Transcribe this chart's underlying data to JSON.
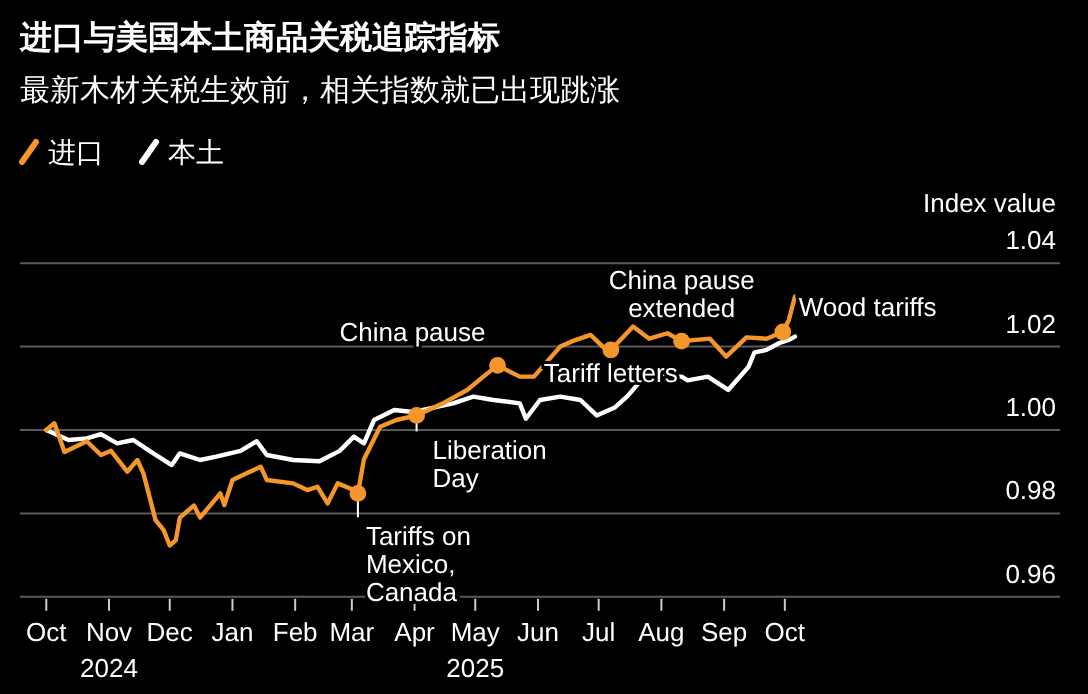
{
  "chart_data": {
    "type": "line",
    "title": "进口与美国本土商品关税追踪指标",
    "subtitle": "最新木材关税生效前，相关指数就已出现跳涨",
    "ylabel": "Index value",
    "legend": "top left",
    "marker": "none",
    "line_style": "solid",
    "grid": "y",
    "xlim": [
      "2024-09-18",
      "2026-02-14"
    ],
    "ylim": [
      0.96,
      1.04
    ],
    "yticks": [
      0.96,
      0.98,
      {
        "value": 1,
        "label": "1.00"
      },
      1.02,
      1.04
    ],
    "xticks": [
      {
        "value": "2024-10-01",
        "label": "Oct"
      },
      {
        "value": "2024-11-01",
        "label": "Nov\n2024"
      },
      {
        "value": "2024-12-01",
        "label": "Dec"
      },
      {
        "value": "2025-01-01",
        "label": "Jan"
      },
      {
        "value": "2025-02-01",
        "label": "Feb"
      },
      {
        "value": "2025-03-01",
        "label": "Mar"
      },
      {
        "value": "2025-04-01",
        "label": "Apr"
      },
      {
        "value": "2025-05-01",
        "label": "May\n2025"
      },
      {
        "value": "2025-06-01",
        "label": "Jun"
      },
      {
        "value": "2025-07-01",
        "label": "Jul"
      },
      {
        "value": "2025-08-01",
        "label": "Aug"
      },
      {
        "value": "2025-09-01",
        "label": "Sep"
      },
      {
        "value": "2025-10-01",
        "label": "Oct"
      }
    ],
    "series": [
      {
        "name": "进口",
        "color": "#f5962a",
        "x": [
          "2024-10-01",
          "2024-10-05",
          "2024-10-10",
          "2024-10-21",
          "2024-10-28",
          "2024-11-02",
          "2024-11-10",
          "2024-11-15",
          "2024-11-18",
          "2024-11-24",
          "2024-11-28",
          "2024-12-01",
          "2024-12-04",
          "2024-12-06",
          "2024-12-13",
          "2024-12-16",
          "2024-12-26",
          "2024-12-28",
          "2025-01-01",
          "2025-01-08",
          "2025-01-15",
          "2025-01-18",
          "2025-01-31",
          "2025-02-07",
          "2025-02-12",
          "2025-02-17",
          "2025-02-22",
          "2025-03-02",
          "2025-03-04",
          "2025-03-07",
          "2025-03-15",
          "2025-03-23",
          "2025-04-02",
          "2025-04-15",
          "2025-04-27",
          "2025-05-05",
          "2025-05-12",
          "2025-05-23",
          "2025-05-30",
          "2025-06-12",
          "2025-06-18",
          "2025-06-27",
          "2025-07-03",
          "2025-07-07",
          "2025-07-18",
          "2025-07-26",
          "2025-08-04",
          "2025-08-11",
          "2025-08-25",
          "2025-09-02",
          "2025-09-12",
          "2025-09-22",
          "2025-09-30",
          "2025-10-03",
          "2025-10-06"
        ],
        "values": [
          1.0,
          1.0016,
          0.9947,
          0.9973,
          0.994,
          0.995,
          0.99,
          0.9928,
          0.9896,
          0.9784,
          0.976,
          0.9723,
          0.9736,
          0.979,
          0.9819,
          0.979,
          0.9848,
          0.982,
          0.988,
          0.9896,
          0.9912,
          0.988,
          0.9872,
          0.9856,
          0.9864,
          0.9824,
          0.9872,
          0.9856,
          0.9848,
          0.993,
          1.0008,
          1.0024,
          1.0035,
          1.0064,
          1.0096,
          1.0128,
          1.0155,
          1.0128,
          1.0128,
          1.02,
          1.0213,
          1.0228,
          1.02,
          1.0192,
          1.0248,
          1.0219,
          1.0232,
          1.0213,
          1.0219,
          1.0176,
          1.0222,
          1.0219,
          1.0235,
          1.0264,
          1.032
        ]
      },
      {
        "name": "本土",
        "color": "#ffffff",
        "x": [
          "2024-10-01",
          "2024-10-12",
          "2024-10-21",
          "2024-10-28",
          "2024-11-05",
          "2024-11-13",
          "2024-11-21",
          "2024-12-02",
          "2024-12-06",
          "2024-12-16",
          "2024-12-24",
          "2025-01-05",
          "2025-01-13",
          "2025-01-18",
          "2025-01-31",
          "2025-02-13",
          "2025-02-23",
          "2025-03-02",
          "2025-03-07",
          "2025-03-12",
          "2025-03-22",
          "2025-03-31",
          "2025-04-20",
          "2025-04-30",
          "2025-05-10",
          "2025-05-23",
          "2025-05-26",
          "2025-06-02",
          "2025-06-12",
          "2025-06-22",
          "2025-06-30",
          "2025-07-09",
          "2025-07-15",
          "2025-07-22",
          "2025-08-01",
          "2025-08-11",
          "2025-08-14",
          "2025-08-24",
          "2025-09-03",
          "2025-09-13",
          "2025-09-16",
          "2025-09-22",
          "2025-09-28",
          "2025-10-03",
          "2025-10-06"
        ],
        "values": [
          1.0,
          0.9976,
          0.998,
          0.999,
          0.9968,
          0.9976,
          0.995,
          0.9916,
          0.9944,
          0.9928,
          0.9936,
          0.995,
          0.9973,
          0.994,
          0.9928,
          0.9925,
          0.995,
          0.9984,
          0.9968,
          1.0024,
          1.0048,
          1.0043,
          1.0064,
          1.008,
          1.0072,
          1.0064,
          1.0027,
          1.0072,
          1.008,
          1.0072,
          1.0035,
          1.0054,
          1.008,
          1.0119,
          1.0128,
          1.0128,
          1.0119,
          1.0128,
          1.0096,
          1.0151,
          1.0186,
          1.0192,
          1.0208,
          1.0216,
          1.0224
        ]
      }
    ],
    "annotations": [
      {
        "text": "Tariffs on\nMexico,\nCanada",
        "x": "2025-03-04",
        "y": 0.9848
      },
      {
        "text": "Liberation\nDay",
        "x": "2025-04-02",
        "y": 1.0035
      },
      {
        "text": "China pause",
        "x": "2025-05-12",
        "y": 1.0155
      },
      {
        "text": "Tariff letters",
        "x": "2025-07-07",
        "y": 1.0192
      },
      {
        "text": "China pause\nextended",
        "x": "2025-08-11",
        "y": 1.0213
      },
      {
        "text": "Wood tariffs",
        "x": "2025-09-30",
        "y": 1.0235
      }
    ]
  }
}
